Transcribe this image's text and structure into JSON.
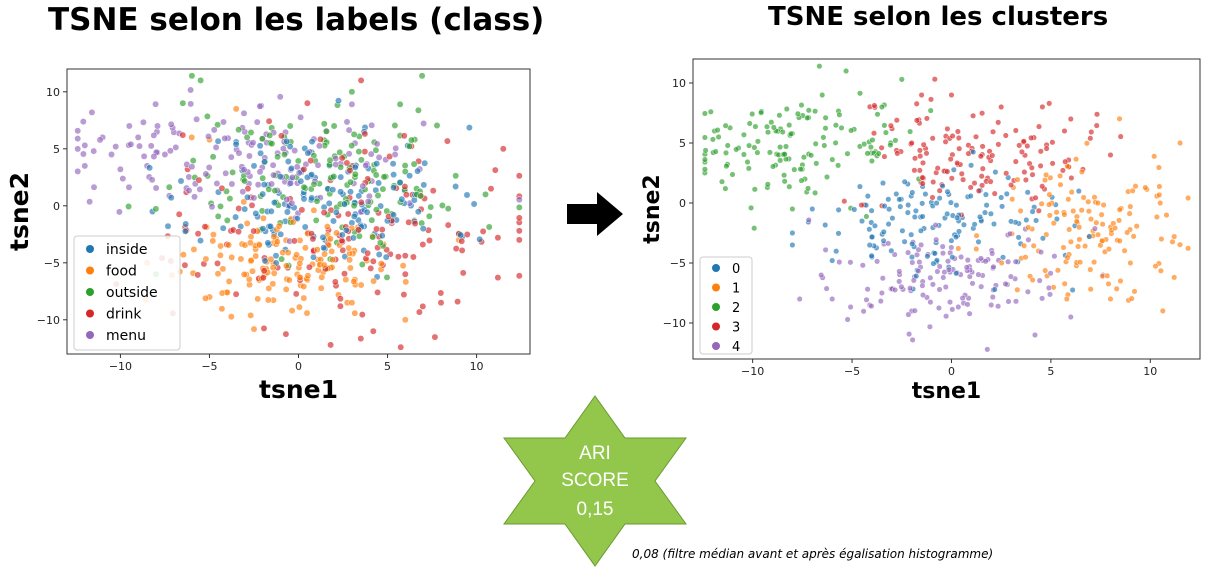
{
  "left_title": "TSNE selon les labels (class)",
  "right_title": "TSNE selon les clusters",
  "score": {
    "line1": "ARI",
    "line2": "SCORE",
    "line3": "0,15",
    "color": "#92c74c"
  },
  "note": "0,08 (filtre médian avant et après égalisation histogramme)",
  "arrow_icon": "right-arrow-icon",
  "chart_data": [
    {
      "type": "scatter",
      "title": "",
      "xlabel": "tsne1",
      "ylabel": "tsne2",
      "xlim": [
        -13,
        13
      ],
      "ylim": [
        -13,
        12
      ],
      "xticks": [
        -10,
        -5,
        0,
        5,
        10
      ],
      "yticks": [
        -10,
        -5,
        0,
        5,
        10
      ],
      "legend_position": "lower-left",
      "series": [
        {
          "name": "inside",
          "color": "#1f77b4",
          "center": [
            1.5,
            0.5
          ],
          "spread": [
            3.5,
            3.2
          ],
          "points": [
            [
              -8.2,
              -0.5
            ],
            [
              -4.5,
              1.2
            ],
            [
              0.5,
              2.5
            ],
            [
              2.5,
              1.0
            ],
            [
              3.0,
              -1.5
            ],
            [
              6.5,
              0.5
            ],
            [
              -1.0,
              -2.5
            ],
            [
              1.5,
              -3.0
            ],
            [
              4.5,
              2.0
            ],
            [
              -2.5,
              3.5
            ],
            [
              7.0,
              -2.0
            ],
            [
              -0.5,
              0.0
            ]
          ]
        },
        {
          "name": "food",
          "color": "#ff7f0e",
          "center": [
            -0.5,
            -4.8
          ],
          "spread": [
            3.0,
            2.0
          ],
          "points": [
            [
              -6,
              6
            ],
            [
              -5,
              5.8
            ],
            [
              -3.5,
              8.5
            ],
            [
              -8.5,
              -5
            ],
            [
              9,
              -3
            ],
            [
              6.0,
              -10.0
            ],
            [
              -5.0,
              -8.0
            ],
            [
              3.0,
              -8.5
            ],
            [
              0.5,
              -6.5
            ],
            [
              -2.0,
              -5.5
            ]
          ]
        },
        {
          "name": "outside",
          "color": "#2ca02c",
          "center": [
            1.5,
            2.5
          ],
          "spread": [
            4.2,
            3.5
          ],
          "points": [
            [
              -5.5,
              11
            ],
            [
              -6.5,
              9
            ],
            [
              10.5,
              1
            ],
            [
              9,
              -2.5
            ],
            [
              -8,
              -6
            ],
            [
              3,
              10
            ],
            [
              2.0,
              7.0
            ],
            [
              6.0,
              3.0
            ]
          ]
        },
        {
          "name": "drink",
          "color": "#d62728",
          "center": [
            2.5,
            -2.0
          ],
          "spread": [
            4.5,
            4.2
          ],
          "points": [
            [
              11.5,
              5
            ],
            [
              11.2,
              -6.3
            ],
            [
              11.2,
              -2.8
            ],
            [
              1.8,
              -12.2
            ],
            [
              4.2,
              -11
            ],
            [
              0.5,
              9
            ],
            [
              -6.5,
              6.2
            ],
            [
              8.0,
              -8.5
            ],
            [
              6.0,
              -6.0
            ]
          ]
        },
        {
          "name": "menu",
          "color": "#9467bd",
          "center": [
            -3.5,
            4.5
          ],
          "spread": [
            4.5,
            2.5
          ],
          "points": [
            [
              -12,
              5.3
            ],
            [
              -11,
              6.0
            ],
            [
              -10.5,
              4.5
            ],
            [
              -9.5,
              7
            ],
            [
              -8.5,
              3.5
            ],
            [
              -12,
              3.5
            ],
            [
              -7.5,
              4.5
            ],
            [
              -9,
              6
            ],
            [
              -10,
              3.2
            ],
            [
              -11.5,
              4.8
            ]
          ]
        }
      ]
    },
    {
      "type": "scatter",
      "title": "",
      "xlabel": "tsne1",
      "ylabel": "tsne2",
      "xlim": [
        -13,
        12.5
      ],
      "ylim": [
        -13,
        12
      ],
      "xticks": [
        -10,
        -5,
        0,
        5,
        10
      ],
      "yticks": [
        -10,
        -5,
        0,
        5,
        10
      ],
      "legend_position": "lower-left",
      "series": [
        {
          "name": "0",
          "color": "#1f77b4",
          "center": [
            -1.0,
            -1.5
          ],
          "spread": [
            3.0,
            2.2
          ],
          "points": [
            [
              -8,
              -2.5
            ],
            [
              -8,
              -3.5
            ],
            [
              -6,
              -4.8
            ],
            [
              -4,
              -4.5
            ],
            [
              1.5,
              -1.5
            ],
            [
              -7,
              -0.5
            ]
          ]
        },
        {
          "name": "1",
          "color": "#ff7f0e",
          "center": [
            6.5,
            -2.0
          ],
          "spread": [
            2.3,
            2.8
          ],
          "points": [
            [
              11.5,
              5
            ],
            [
              11.2,
              -6.2
            ],
            [
              11.2,
              -2.8
            ],
            [
              10.5,
              0
            ],
            [
              9,
              -5
            ],
            [
              8,
              -8
            ],
            [
              5.8,
              -8
            ],
            [
              8.5,
              -6.5
            ]
          ]
        },
        {
          "name": "2",
          "color": "#2ca02c",
          "center": [
            -8.0,
            4.5
          ],
          "spread": [
            2.8,
            2.2
          ],
          "points": [
            [
              -5.3,
              11
            ],
            [
              -6.5,
              9
            ],
            [
              -2.5,
              10.3
            ],
            [
              -3.5,
              8
            ],
            [
              -12,
              5.3
            ],
            [
              -8,
              -0.5
            ],
            [
              -4,
              3.5
            ]
          ]
        },
        {
          "name": "3",
          "color": "#d62728",
          "center": [
            1.5,
            4.2
          ],
          "spread": [
            3.2,
            2.5
          ],
          "points": [
            [
              -1.5,
              9
            ],
            [
              0,
              9
            ],
            [
              2.5,
              8
            ],
            [
              6,
              7
            ],
            [
              8,
              4
            ],
            [
              -2,
              5
            ],
            [
              3,
              1.5
            ]
          ]
        },
        {
          "name": "4",
          "color": "#9467bd",
          "center": [
            -0.5,
            -6.0
          ],
          "spread": [
            3.2,
            1.8
          ],
          "points": [
            [
              1.8,
              -12.2
            ],
            [
              4.2,
              -11
            ],
            [
              6,
              -9.5
            ],
            [
              -2,
              -9
            ],
            [
              -6,
              -8
            ],
            [
              -3.5,
              -7.5
            ],
            [
              2,
              -8.5
            ]
          ]
        }
      ]
    }
  ]
}
